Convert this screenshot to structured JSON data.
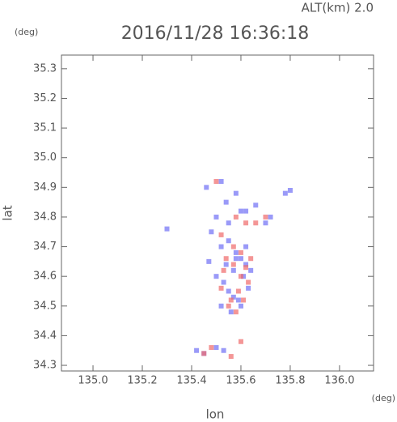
{
  "chart_data": {
    "type": "scatter",
    "title": "2016/11/28 16:36:18",
    "subtitle": "ALT(km) 2.0",
    "y_unit": "(deg)",
    "x_unit": "(deg)",
    "x_label": "lon",
    "y_label": "lat",
    "xlim": [
      134.872,
      136.138
    ],
    "ylim": [
      34.281,
      35.346
    ],
    "xticks": [
      {
        "value": 135.0,
        "label": "135.0"
      },
      {
        "value": 135.2,
        "label": "135.2"
      },
      {
        "value": 135.4,
        "label": "135.4"
      },
      {
        "value": 135.6,
        "label": "135.6"
      },
      {
        "value": 135.8,
        "label": "135.8"
      },
      {
        "value": 136.0,
        "label": "136.0"
      }
    ],
    "yticks": [
      {
        "value": 34.3,
        "label": "34.3"
      },
      {
        "value": 34.4,
        "label": "34.4"
      },
      {
        "value": 34.5,
        "label": "34.5"
      },
      {
        "value": 34.6,
        "label": "34.6"
      },
      {
        "value": 34.7,
        "label": "34.7"
      },
      {
        "value": 34.8,
        "label": "34.8"
      },
      {
        "value": 34.9,
        "label": "34.9"
      },
      {
        "value": 35.0,
        "label": "35.0"
      },
      {
        "value": 35.1,
        "label": "35.1"
      },
      {
        "value": 35.2,
        "label": "35.2"
      },
      {
        "value": 35.3,
        "label": "35.3"
      }
    ],
    "series": [
      {
        "color": "#6f6ff5",
        "x": [
          135.52,
          135.55,
          135.58,
          135.6,
          135.62,
          135.64,
          135.5,
          135.53,
          135.57,
          135.61,
          135.55,
          135.59,
          135.63,
          135.52,
          135.56,
          135.6,
          135.54,
          135.58,
          135.62,
          135.57,
          135.48,
          135.5,
          135.54,
          135.6,
          135.66,
          135.7,
          135.72,
          135.78,
          135.8,
          135.46,
          135.52,
          135.55,
          135.47,
          135.42,
          135.45,
          135.5,
          135.53,
          135.58,
          135.62,
          135.3
        ],
        "y": [
          34.7,
          34.72,
          34.68,
          34.66,
          34.7,
          34.62,
          34.6,
          34.58,
          34.62,
          34.6,
          34.55,
          34.52,
          34.56,
          34.5,
          34.48,
          34.5,
          34.64,
          34.66,
          34.64,
          34.53,
          34.75,
          34.8,
          34.85,
          34.82,
          34.84,
          34.78,
          34.8,
          34.88,
          34.89,
          34.9,
          34.92,
          34.78,
          34.65,
          34.35,
          34.34,
          34.36,
          34.35,
          34.88,
          34.82,
          34.76
        ]
      },
      {
        "color": "#f06a6a",
        "x": [
          135.54,
          135.57,
          135.6,
          135.63,
          135.52,
          135.56,
          135.59,
          135.62,
          135.55,
          135.58,
          135.61,
          135.53,
          135.57,
          135.6,
          135.64,
          135.5,
          135.62,
          135.66,
          135.45,
          135.48,
          135.56,
          135.6,
          135.7,
          135.52,
          135.58
        ],
        "y": [
          34.66,
          34.64,
          34.6,
          34.58,
          34.56,
          34.52,
          34.55,
          34.63,
          34.5,
          34.48,
          34.52,
          34.62,
          34.7,
          34.68,
          34.66,
          34.92,
          34.78,
          34.78,
          34.34,
          34.36,
          34.33,
          34.38,
          34.8,
          34.74,
          34.8
        ]
      }
    ]
  }
}
